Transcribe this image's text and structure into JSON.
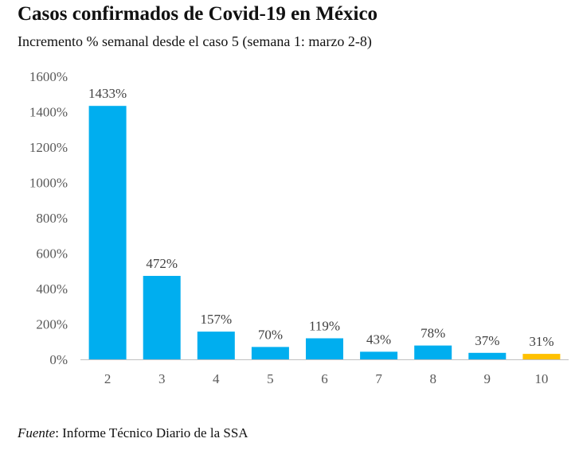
{
  "chart_data": {
    "type": "bar",
    "title": "Casos confirmados de Covid-19 en México",
    "subtitle": "Incremento % semanal desde el caso 5 (semana 1: marzo 2-8)",
    "xlabel": "",
    "ylabel": "",
    "categories": [
      "2",
      "3",
      "4",
      "5",
      "6",
      "7",
      "8",
      "9",
      "10"
    ],
    "values": [
      1433,
      472,
      157,
      70,
      119,
      43,
      78,
      37,
      31
    ],
    "data_labels": [
      "1433%",
      "472%",
      "157%",
      "70%",
      "119%",
      "43%",
      "78%",
      "37%",
      "31%"
    ],
    "ylim": [
      0,
      1600
    ],
    "yticks": [
      0,
      200,
      400,
      600,
      800,
      1000,
      1200,
      1400,
      1600
    ],
    "ytick_labels": [
      "0%",
      "200%",
      "400%",
      "600%",
      "800%",
      "1000%",
      "1200%",
      "1400%",
      "1600%"
    ],
    "grid": false,
    "legend": "none",
    "bar_color": "#00AEEF",
    "highlight_color": "#FFC000",
    "highlight_category": "10"
  },
  "source": {
    "label": "Fuente",
    "text": ": Informe Técnico Diario de la SSA"
  }
}
